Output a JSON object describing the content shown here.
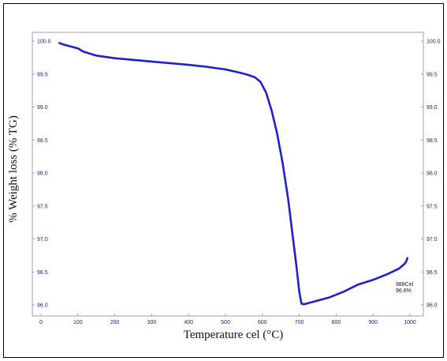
{
  "chart_data": {
    "type": "line",
    "xlabel": "Temperature cel (°C)",
    "ylabel": "% Weight loss (% TG)",
    "xlim": [
      0,
      1000
    ],
    "ylim": [
      95.9,
      100.1
    ],
    "x_ticks": [
      "0",
      "100",
      "200",
      "300",
      "400",
      "500",
      "600",
      "700",
      "800",
      "900",
      "1000"
    ],
    "y_ticks_left": [
      "100.0",
      "99.5",
      "99.0",
      "98.5",
      "98.0",
      "97.5",
      "97.0",
      "96.5",
      "96.0"
    ],
    "y_ticks_right": [
      "100.0",
      "99.5",
      "99.0",
      "98.5",
      "98.0",
      "97.5",
      "97.0",
      "96.5",
      "96.0"
    ],
    "grid": false,
    "series": [
      {
        "color": "#1f1fd0",
        "x": [
          50,
          60,
          80,
          100,
          115,
          150,
          200,
          300,
          400,
          450,
          500,
          540,
          560,
          580,
          595,
          610,
          625,
          640,
          655,
          670,
          682,
          692,
          700,
          706,
          712,
          720,
          740,
          780,
          820,
          860,
          900,
          940,
          970,
          985,
          990,
          993
        ],
        "y": [
          99.97,
          99.95,
          99.92,
          99.89,
          99.84,
          99.78,
          99.74,
          99.69,
          99.64,
          99.61,
          99.57,
          99.52,
          99.49,
          99.45,
          99.38,
          99.22,
          98.95,
          98.6,
          98.15,
          97.6,
          97.05,
          96.6,
          96.2,
          96.02,
          96.01,
          96.02,
          96.05,
          96.11,
          96.2,
          96.31,
          96.38,
          96.47,
          96.55,
          96.62,
          96.66,
          96.71
        ]
      }
    ],
    "annotations": [
      "988Cel",
      "96.6%"
    ]
  }
}
